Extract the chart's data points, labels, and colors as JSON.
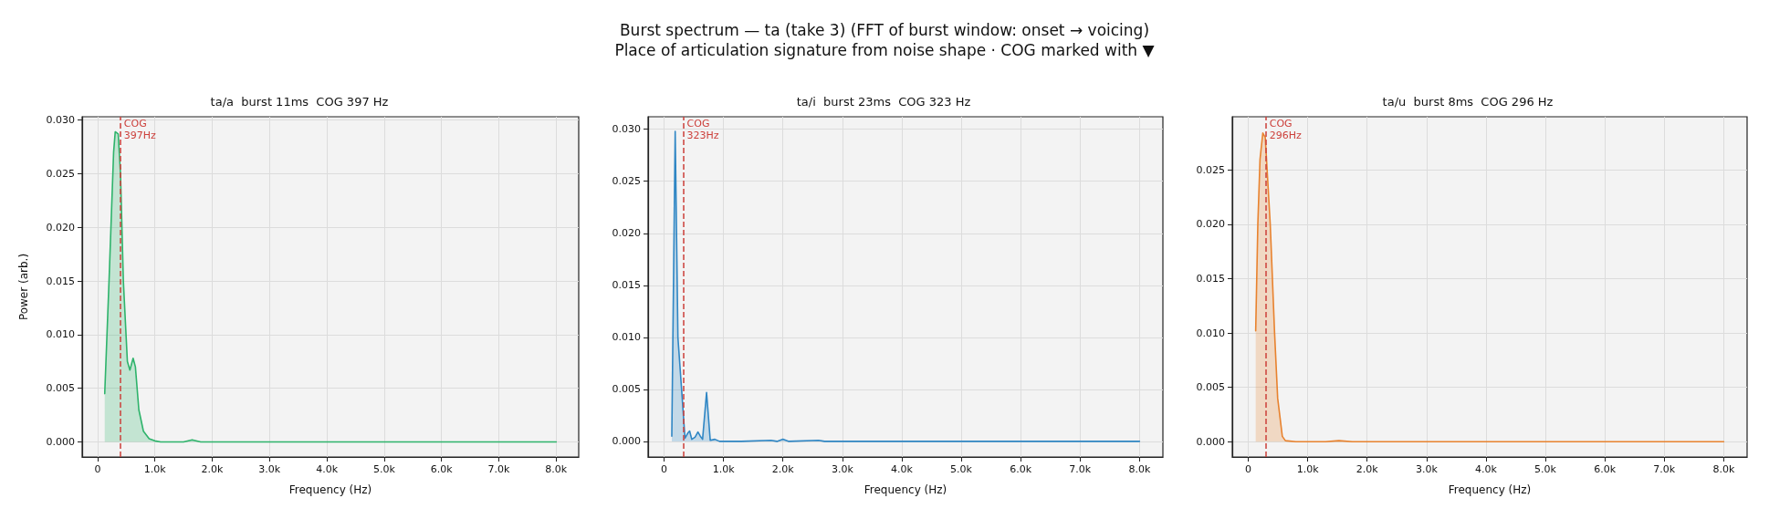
{
  "chart_data": [
    {
      "type": "area",
      "title": "ta/a  burst 11ms  COG 397 Hz",
      "xlabel": "Frequency (Hz)",
      "ylabel": "Power (arb.)",
      "annotations": [
        "Burst spectrum — ta (take 3)  (FFT of burst window: onset → voicing)",
        "Place of articulation signature from noise shape · COG marked with ▼"
      ],
      "series": [
        {
          "color": "#2eb36b",
          "x": [
            125,
            200,
            280,
            308,
            360,
            400,
            450,
            520,
            564,
            620,
            660,
            720,
            800,
            900,
            1000,
            1100,
            1300,
            1500,
            1650,
            1800,
            3000,
            3900,
            5000,
            8000
          ],
          "values": [
            0.0045,
            0.015,
            0.027,
            0.0289,
            0.0287,
            0.025,
            0.015,
            0.0075,
            0.0067,
            0.0078,
            0.007,
            0.003,
            0.001,
            0.0003,
            0.0001,
            0,
            0,
            0,
            0.0002,
            0,
            0,
            0,
            0,
            0
          ]
        }
      ],
      "xlim": [
        -269,
        8394
      ],
      "ylim": [
        -0.0014,
        0.0303
      ],
      "xticks": [
        {
          "value": 0,
          "label": "0"
        },
        {
          "value": 1000,
          "label": "1.0k"
        },
        {
          "value": 2000,
          "label": "2.0k"
        },
        {
          "value": 3000,
          "label": "3.0k"
        },
        {
          "value": 4000,
          "label": "4.0k"
        },
        {
          "value": 5000,
          "label": "5.0k"
        },
        {
          "value": 6000,
          "label": "6.0k"
        },
        {
          "value": 7000,
          "label": "7.0k"
        },
        {
          "value": 8000,
          "label": "8.0k"
        }
      ],
      "yticks": [
        {
          "value": 0,
          "label": "0.000"
        },
        {
          "value": 0.005,
          "label": "0.005"
        },
        {
          "value": 0.01,
          "label": "0.010"
        },
        {
          "value": 0.015,
          "label": "0.015"
        },
        {
          "value": 0.02,
          "label": "0.020"
        },
        {
          "value": 0.025,
          "label": "0.025"
        },
        {
          "value": 0.03,
          "label": "0.030"
        }
      ],
      "ref_lines": [
        {
          "axis": "x",
          "value": 397,
          "label": "COG\n397Hz",
          "color": "#cc3f3a",
          "line_style": "dashed"
        }
      ],
      "grid": true,
      "marker": "none",
      "line_style": "solid"
    },
    {
      "type": "area",
      "title": "ta/i  burst 23ms  COG 323 Hz",
      "xlabel": "Frequency (Hz)",
      "series": [
        {
          "color": "#2f86c4",
          "x": [
            130,
            187,
            233,
            295,
            352,
            400,
            430,
            466,
            520,
            570,
            610,
            648,
            715,
            777,
            855,
            933,
            1100,
            1300,
            1800,
            1900,
            2000,
            2100,
            2600,
            2700,
            8000
          ],
          "values": [
            0.0005,
            0.0298,
            0.01,
            0.005,
            0.0003,
            0.0008,
            0.001,
            0.0002,
            0.0004,
            0.0009,
            0.0005,
            0.0002,
            0.0047,
            0.0001,
            0.0002,
            0,
            0,
            0,
            0.0001,
            0,
            0.0002,
            0,
            0.0001,
            0,
            0
          ]
        }
      ],
      "xlim": [
        -269,
        8394
      ],
      "ylim": [
        -0.0015,
        0.0312
      ],
      "xticks": [
        {
          "value": 0,
          "label": "0"
        },
        {
          "value": 1000,
          "label": "1.0k"
        },
        {
          "value": 2000,
          "label": "2.0k"
        },
        {
          "value": 3000,
          "label": "3.0k"
        },
        {
          "value": 4000,
          "label": "4.0k"
        },
        {
          "value": 5000,
          "label": "5.0k"
        },
        {
          "value": 6000,
          "label": "6.0k"
        },
        {
          "value": 7000,
          "label": "7.0k"
        },
        {
          "value": 8000,
          "label": "8.0k"
        }
      ],
      "yticks": [
        {
          "value": 0,
          "label": "0.000"
        },
        {
          "value": 0.005,
          "label": "0.005"
        },
        {
          "value": 0.01,
          "label": "0.010"
        },
        {
          "value": 0.015,
          "label": "0.015"
        },
        {
          "value": 0.02,
          "label": "0.020"
        },
        {
          "value": 0.025,
          "label": "0.025"
        },
        {
          "value": 0.03,
          "label": "0.030"
        }
      ],
      "ref_lines": [
        {
          "axis": "x",
          "value": 323,
          "label": "COG\n323Hz",
          "color": "#cc3f3a",
          "line_style": "dashed"
        }
      ],
      "grid": true,
      "marker": "none",
      "line_style": "solid"
    },
    {
      "type": "area",
      "title": "ta/u  burst 8ms  COG 296 Hz",
      "xlabel": "Frequency (Hz)",
      "series": [
        {
          "color": "#e8822e",
          "x": [
            125,
            161,
            198,
            245,
            286,
            370,
            443,
            495,
            573,
            625,
            800,
            1000,
            1300,
            1526,
            1750,
            3000,
            8000
          ],
          "values": [
            0.0102,
            0.02,
            0.026,
            0.0284,
            0.028,
            0.02,
            0.01,
            0.004,
            0.0005,
            0.0001,
            0,
            0,
            0,
            0.0001,
            0,
            0,
            0
          ]
        }
      ],
      "xlim": [
        -269,
        8394
      ],
      "ylim": [
        -0.0014,
        0.0299
      ],
      "xticks": [
        {
          "value": 0,
          "label": "0"
        },
        {
          "value": 1000,
          "label": "1.0k"
        },
        {
          "value": 2000,
          "label": "2.0k"
        },
        {
          "value": 3000,
          "label": "3.0k"
        },
        {
          "value": 4000,
          "label": "4.0k"
        },
        {
          "value": 5000,
          "label": "5.0k"
        },
        {
          "value": 6000,
          "label": "6.0k"
        },
        {
          "value": 7000,
          "label": "7.0k"
        },
        {
          "value": 8000,
          "label": "8.0k"
        }
      ],
      "yticks": [
        {
          "value": 0,
          "label": "0.000"
        },
        {
          "value": 0.005,
          "label": "0.005"
        },
        {
          "value": 0.01,
          "label": "0.010"
        },
        {
          "value": 0.015,
          "label": "0.015"
        },
        {
          "value": 0.02,
          "label": "0.020"
        },
        {
          "value": 0.025,
          "label": "0.025"
        }
      ],
      "ref_lines": [
        {
          "axis": "x",
          "value": 296,
          "label": "COG\n296Hz",
          "color": "#cc3f3a",
          "line_style": "dashed"
        }
      ],
      "grid": true,
      "marker": "none",
      "line_style": "solid"
    }
  ]
}
